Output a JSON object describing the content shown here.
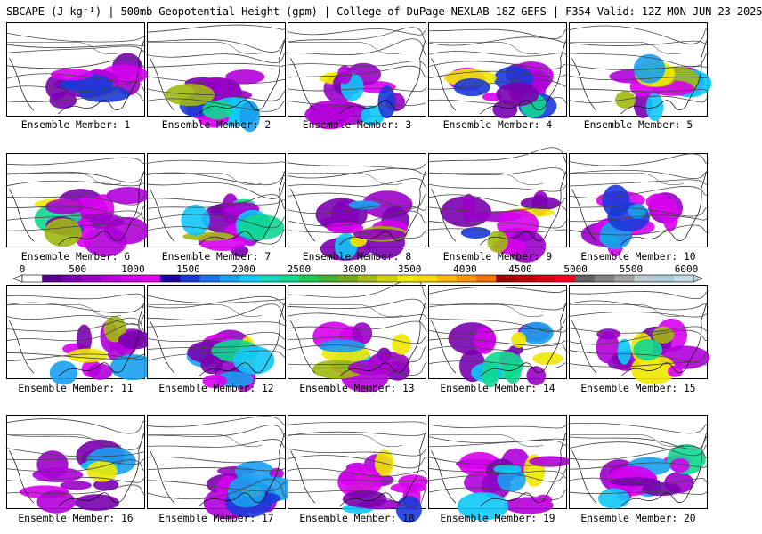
{
  "title": "SBCAPE (J kg⁻¹) | 500mb Geopotential Height (gpm) | College of DuPage NEXLAB 18Z GEFS | F354 Valid: 12Z MON JUN 23 2025",
  "colorbar": {
    "tick_labels": [
      "0",
      "500",
      "1000",
      "1500",
      "2000",
      "2500",
      "3000",
      "3500",
      "4000",
      "4500",
      "5000",
      "5500",
      "6000"
    ],
    "min": 0,
    "max": 6000,
    "colors": [
      "#ffffff",
      "#5b0090",
      "#7a00b0",
      "#9a00c8",
      "#b800d8",
      "#d000e8",
      "#e400f0",
      "#2000a0",
      "#1a3ad8",
      "#1c70e8",
      "#18a0f0",
      "#10c8f8",
      "#10d8c0",
      "#10d890",
      "#20c850",
      "#40b030",
      "#70a820",
      "#a0b810",
      "#d0d000",
      "#f0e800",
      "#f8d800",
      "#f8b800",
      "#f89800",
      "#f07000",
      "#a00000",
      "#c00000",
      "#e00010",
      "#f80020",
      "#606060",
      "#808080",
      "#a0a0a0",
      "#b8c8d0",
      "#a8c8d8",
      "#c0d8e0"
    ]
  },
  "panels": [
    {
      "label": "Ensemble Member: 1"
    },
    {
      "label": "Ensemble Member: 2"
    },
    {
      "label": "Ensemble Member: 3"
    },
    {
      "label": "Ensemble Member: 4"
    },
    {
      "label": "Ensemble Member: 5"
    },
    {
      "label": "Ensemble Member: 6"
    },
    {
      "label": "Ensemble Member: 7"
    },
    {
      "label": "Ensemble Member: 8"
    },
    {
      "label": "Ensemble Member: 9"
    },
    {
      "label": "Ensemble Member: 10"
    },
    {
      "label": "Ensemble Member: 11"
    },
    {
      "label": "Ensemble Member: 12"
    },
    {
      "label": "Ensemble Member: 13"
    },
    {
      "label": "Ensemble Member: 14"
    },
    {
      "label": "Ensemble Member: 15"
    },
    {
      "label": "Ensemble Member: 16"
    },
    {
      "label": "Ensemble Member: 17"
    },
    {
      "label": "Ensemble Member: 18"
    },
    {
      "label": "Ensemble Member: 19"
    },
    {
      "label": "Ensemble Member: 20"
    }
  ]
}
